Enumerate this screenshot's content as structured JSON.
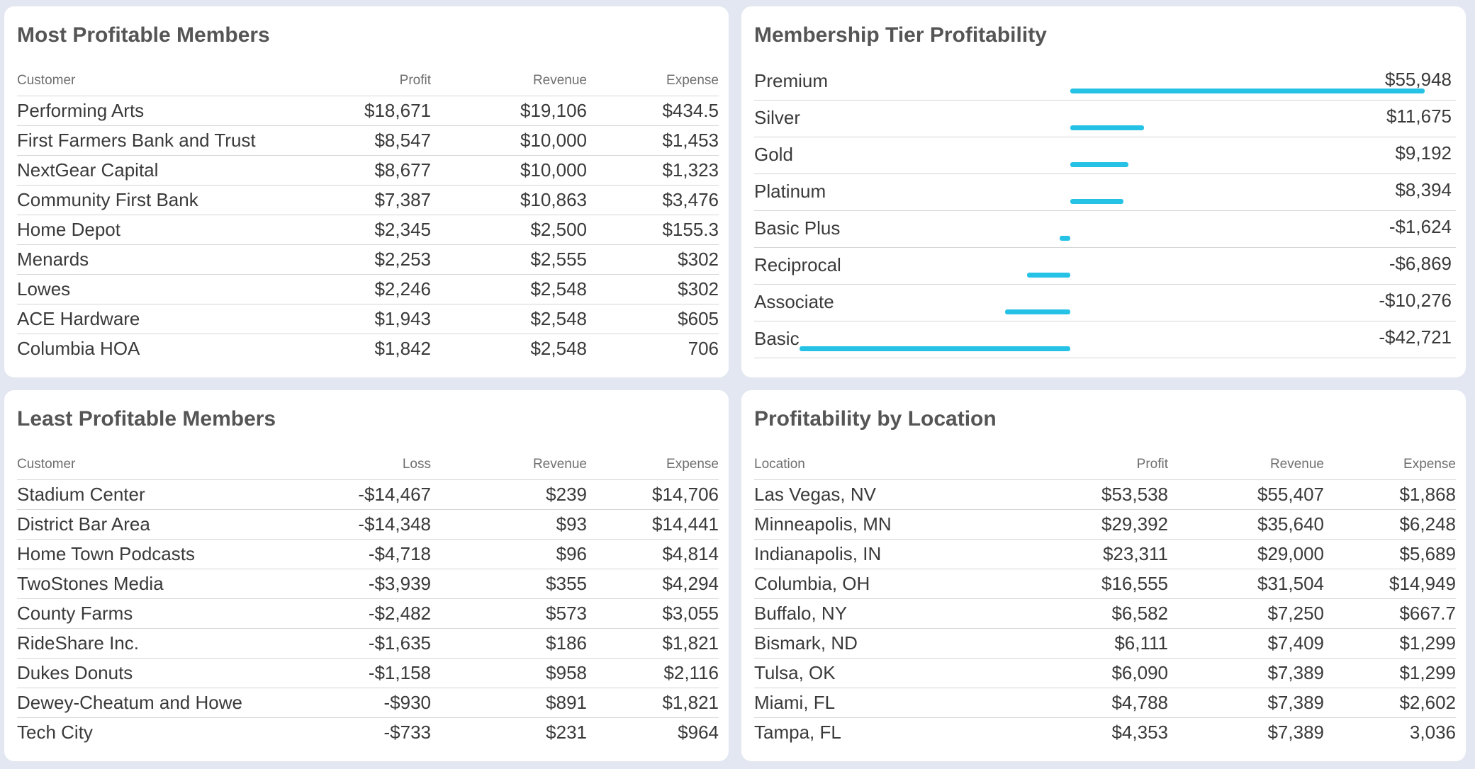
{
  "most_profitable": {
    "title": "Most Profitable Members",
    "headers": [
      "Customer",
      "Profit",
      "Revenue",
      "Expense"
    ],
    "rows": [
      [
        "Performing Arts",
        "$18,671",
        "$19,106",
        "$434.5"
      ],
      [
        "First Farmers Bank and Trust",
        "$8,547",
        "$10,000",
        "$1,453"
      ],
      [
        "NextGear Capital",
        "$8,677",
        "$10,000",
        "$1,323"
      ],
      [
        "Community First Bank",
        "$7,387",
        "$10,863",
        "$3,476"
      ],
      [
        "Home Depot",
        "$2,345",
        "$2,500",
        "$155.3"
      ],
      [
        "Menards",
        "$2,253",
        "$2,555",
        "$302"
      ],
      [
        "Lowes",
        "$2,246",
        "$2,548",
        "$302"
      ],
      [
        "ACE Hardware",
        "$1,943",
        "$2,548",
        "$605"
      ],
      [
        "Columbia HOA",
        "$1,842",
        "$2,548",
        "706"
      ]
    ]
  },
  "tier_profitability": {
    "title": "Membership Tier Profitability",
    "bar_color": "#26c2e6",
    "rows": [
      {
        "name": "Premium",
        "label": "$55,948",
        "value": 55948
      },
      {
        "name": "Silver",
        "label": "$11,675",
        "value": 11675
      },
      {
        "name": "Gold",
        "label": "$9,192",
        "value": 9192
      },
      {
        "name": "Platinum",
        "label": "$8,394",
        "value": 8394
      },
      {
        "name": "Basic Plus",
        "label": "-$1,624",
        "value": -1624
      },
      {
        "name": "Reciprocal",
        "label": "-$6,869",
        "value": -6869
      },
      {
        "name": "Associate",
        "label": "-$10,276",
        "value": -10276
      },
      {
        "name": "Basic",
        "label": "-$42,721",
        "value": -42721
      }
    ]
  },
  "least_profitable": {
    "title": "Least Profitable Members",
    "headers": [
      "Customer",
      "Loss",
      "Revenue",
      "Expense"
    ],
    "rows": [
      [
        "Stadium Center",
        "-$14,467",
        "$239",
        "$14,706"
      ],
      [
        "District Bar Area",
        "-$14,348",
        "$93",
        "$14,441"
      ],
      [
        "Home Town Podcasts",
        "-$4,718",
        "$96",
        "$4,814"
      ],
      [
        "TwoStones Media",
        "-$3,939",
        "$355",
        "$4,294"
      ],
      [
        "County Farms",
        "-$2,482",
        "$573",
        "$3,055"
      ],
      [
        "RideShare Inc.",
        "-$1,635",
        "$186",
        "$1,821"
      ],
      [
        "Dukes Donuts",
        "-$1,158",
        "$958",
        "$2,116"
      ],
      [
        "Dewey-Cheatum and Howe",
        "-$930",
        "$891",
        "$1,821"
      ],
      [
        "Tech City",
        "-$733",
        "$231",
        "$964"
      ]
    ]
  },
  "by_location": {
    "title": "Profitability by Location",
    "headers": [
      "Location",
      "Profit",
      "Revenue",
      "Expense"
    ],
    "rows": [
      [
        "Las Vegas, NV",
        "$53,538",
        "$55,407",
        "$1,868"
      ],
      [
        "Minneapolis, MN",
        "$29,392",
        "$35,640",
        "$6,248"
      ],
      [
        "Indianapolis, IN",
        "$23,311",
        "$29,000",
        "$5,689"
      ],
      [
        "Columbia, OH",
        "$16,555",
        "$31,504",
        "$14,949"
      ],
      [
        "Buffalo, NY",
        "$6,582",
        "$7,250",
        "$667.7"
      ],
      [
        "Bismark, ND",
        "$6,111",
        "$7,409",
        "$1,299"
      ],
      [
        "Tulsa, OK",
        "$6,090",
        "$7,389",
        "$1,299"
      ],
      [
        "Miami, FL",
        "$4,788",
        "$7,389",
        "$2,602"
      ],
      [
        "Tampa, FL",
        "$4,353",
        "$7,389",
        "3,036"
      ]
    ]
  }
}
